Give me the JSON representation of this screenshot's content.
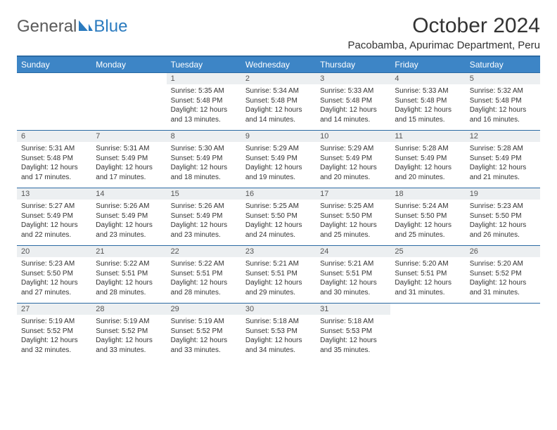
{
  "brand": {
    "part1": "General",
    "part2": "Blue"
  },
  "title": "October 2024",
  "location": "Pacobamba, Apurimac Department, Peru",
  "colors": {
    "header_bg": "#3d85c6",
    "header_border": "#2b6aa3",
    "daynum_bg": "#eceff1",
    "text": "#333333",
    "brand_gray": "#5a5a5a",
    "brand_blue": "#2b7bbf"
  },
  "weekdays": [
    "Sunday",
    "Monday",
    "Tuesday",
    "Wednesday",
    "Thursday",
    "Friday",
    "Saturday"
  ],
  "weeks": [
    {
      "nums": [
        "",
        "",
        "1",
        "2",
        "3",
        "4",
        "5"
      ],
      "cells": [
        {},
        {},
        {
          "sunrise": "Sunrise: 5:35 AM",
          "sunset": "Sunset: 5:48 PM",
          "daylight": "Daylight: 12 hours and 13 minutes."
        },
        {
          "sunrise": "Sunrise: 5:34 AM",
          "sunset": "Sunset: 5:48 PM",
          "daylight": "Daylight: 12 hours and 14 minutes."
        },
        {
          "sunrise": "Sunrise: 5:33 AM",
          "sunset": "Sunset: 5:48 PM",
          "daylight": "Daylight: 12 hours and 14 minutes."
        },
        {
          "sunrise": "Sunrise: 5:33 AM",
          "sunset": "Sunset: 5:48 PM",
          "daylight": "Daylight: 12 hours and 15 minutes."
        },
        {
          "sunrise": "Sunrise: 5:32 AM",
          "sunset": "Sunset: 5:48 PM",
          "daylight": "Daylight: 12 hours and 16 minutes."
        }
      ]
    },
    {
      "nums": [
        "6",
        "7",
        "8",
        "9",
        "10",
        "11",
        "12"
      ],
      "cells": [
        {
          "sunrise": "Sunrise: 5:31 AM",
          "sunset": "Sunset: 5:48 PM",
          "daylight": "Daylight: 12 hours and 17 minutes."
        },
        {
          "sunrise": "Sunrise: 5:31 AM",
          "sunset": "Sunset: 5:49 PM",
          "daylight": "Daylight: 12 hours and 17 minutes."
        },
        {
          "sunrise": "Sunrise: 5:30 AM",
          "sunset": "Sunset: 5:49 PM",
          "daylight": "Daylight: 12 hours and 18 minutes."
        },
        {
          "sunrise": "Sunrise: 5:29 AM",
          "sunset": "Sunset: 5:49 PM",
          "daylight": "Daylight: 12 hours and 19 minutes."
        },
        {
          "sunrise": "Sunrise: 5:29 AM",
          "sunset": "Sunset: 5:49 PM",
          "daylight": "Daylight: 12 hours and 20 minutes."
        },
        {
          "sunrise": "Sunrise: 5:28 AM",
          "sunset": "Sunset: 5:49 PM",
          "daylight": "Daylight: 12 hours and 20 minutes."
        },
        {
          "sunrise": "Sunrise: 5:28 AM",
          "sunset": "Sunset: 5:49 PM",
          "daylight": "Daylight: 12 hours and 21 minutes."
        }
      ]
    },
    {
      "nums": [
        "13",
        "14",
        "15",
        "16",
        "17",
        "18",
        "19"
      ],
      "cells": [
        {
          "sunrise": "Sunrise: 5:27 AM",
          "sunset": "Sunset: 5:49 PM",
          "daylight": "Daylight: 12 hours and 22 minutes."
        },
        {
          "sunrise": "Sunrise: 5:26 AM",
          "sunset": "Sunset: 5:49 PM",
          "daylight": "Daylight: 12 hours and 23 minutes."
        },
        {
          "sunrise": "Sunrise: 5:26 AM",
          "sunset": "Sunset: 5:49 PM",
          "daylight": "Daylight: 12 hours and 23 minutes."
        },
        {
          "sunrise": "Sunrise: 5:25 AM",
          "sunset": "Sunset: 5:50 PM",
          "daylight": "Daylight: 12 hours and 24 minutes."
        },
        {
          "sunrise": "Sunrise: 5:25 AM",
          "sunset": "Sunset: 5:50 PM",
          "daylight": "Daylight: 12 hours and 25 minutes."
        },
        {
          "sunrise": "Sunrise: 5:24 AM",
          "sunset": "Sunset: 5:50 PM",
          "daylight": "Daylight: 12 hours and 25 minutes."
        },
        {
          "sunrise": "Sunrise: 5:23 AM",
          "sunset": "Sunset: 5:50 PM",
          "daylight": "Daylight: 12 hours and 26 minutes."
        }
      ]
    },
    {
      "nums": [
        "20",
        "21",
        "22",
        "23",
        "24",
        "25",
        "26"
      ],
      "cells": [
        {
          "sunrise": "Sunrise: 5:23 AM",
          "sunset": "Sunset: 5:50 PM",
          "daylight": "Daylight: 12 hours and 27 minutes."
        },
        {
          "sunrise": "Sunrise: 5:22 AM",
          "sunset": "Sunset: 5:51 PM",
          "daylight": "Daylight: 12 hours and 28 minutes."
        },
        {
          "sunrise": "Sunrise: 5:22 AM",
          "sunset": "Sunset: 5:51 PM",
          "daylight": "Daylight: 12 hours and 28 minutes."
        },
        {
          "sunrise": "Sunrise: 5:21 AM",
          "sunset": "Sunset: 5:51 PM",
          "daylight": "Daylight: 12 hours and 29 minutes."
        },
        {
          "sunrise": "Sunrise: 5:21 AM",
          "sunset": "Sunset: 5:51 PM",
          "daylight": "Daylight: 12 hours and 30 minutes."
        },
        {
          "sunrise": "Sunrise: 5:20 AM",
          "sunset": "Sunset: 5:51 PM",
          "daylight": "Daylight: 12 hours and 31 minutes."
        },
        {
          "sunrise": "Sunrise: 5:20 AM",
          "sunset": "Sunset: 5:52 PM",
          "daylight": "Daylight: 12 hours and 31 minutes."
        }
      ]
    },
    {
      "nums": [
        "27",
        "28",
        "29",
        "30",
        "31",
        "",
        ""
      ],
      "cells": [
        {
          "sunrise": "Sunrise: 5:19 AM",
          "sunset": "Sunset: 5:52 PM",
          "daylight": "Daylight: 12 hours and 32 minutes."
        },
        {
          "sunrise": "Sunrise: 5:19 AM",
          "sunset": "Sunset: 5:52 PM",
          "daylight": "Daylight: 12 hours and 33 minutes."
        },
        {
          "sunrise": "Sunrise: 5:19 AM",
          "sunset": "Sunset: 5:52 PM",
          "daylight": "Daylight: 12 hours and 33 minutes."
        },
        {
          "sunrise": "Sunrise: 5:18 AM",
          "sunset": "Sunset: 5:53 PM",
          "daylight": "Daylight: 12 hours and 34 minutes."
        },
        {
          "sunrise": "Sunrise: 5:18 AM",
          "sunset": "Sunset: 5:53 PM",
          "daylight": "Daylight: 12 hours and 35 minutes."
        },
        {},
        {}
      ]
    }
  ]
}
